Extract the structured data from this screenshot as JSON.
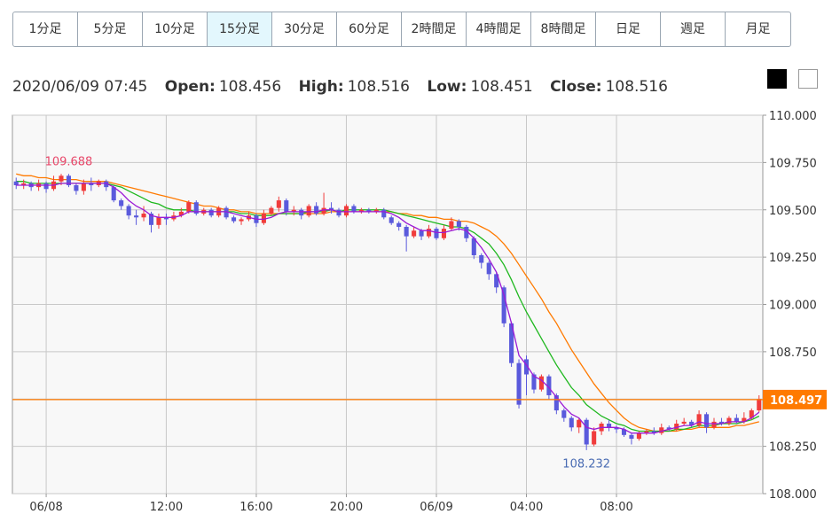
{
  "timeframes": [
    {
      "label": "1分足",
      "active": false
    },
    {
      "label": "5分足",
      "active": false
    },
    {
      "label": "10分足",
      "active": false
    },
    {
      "label": "15分足",
      "active": true
    },
    {
      "label": "30分足",
      "active": false
    },
    {
      "label": "60分足",
      "active": false
    },
    {
      "label": "2時間足",
      "active": false
    },
    {
      "label": "4時間足",
      "active": false
    },
    {
      "label": "8時間足",
      "active": false
    },
    {
      "label": "日足",
      "active": false
    },
    {
      "label": "週足",
      "active": false
    },
    {
      "label": "月足",
      "active": false
    }
  ],
  "ohlc": {
    "datetime": "2020/06/09 07:45",
    "open_label": "Open:",
    "open": "108.456",
    "high_label": "High:",
    "high": "108.516",
    "low_label": "Low:",
    "low": "108.451",
    "close_label": "Close:",
    "close": "108.516"
  },
  "theme": {
    "dark": "dark-theme-button",
    "light": "light-theme-button"
  },
  "colors": {
    "up": "#f03c3c",
    "down": "#5a5adc",
    "ma_short": "#9b1ad6",
    "ma_mid": "#1fb81f",
    "ma_long": "#ff7a00",
    "price_line": "#ff7a00",
    "high_label": "#e8486a",
    "low_label": "#4a6cb3",
    "grid": "#c8c8c8",
    "plot_bg": "#f8f8f8"
  },
  "chart_data": {
    "type": "candlestick",
    "symbol_interval": "15分足",
    "ylim": [
      108.0,
      110.0
    ],
    "yticks": [
      "110.000",
      "109.750",
      "109.500",
      "109.250",
      "109.000",
      "108.750",
      "108.500",
      "108.250",
      "108.000"
    ],
    "xticks": [
      "06/08",
      "12:00",
      "16:00",
      "20:00",
      "06/09",
      "04:00",
      "08:00"
    ],
    "current_price": "108.497",
    "period_high": "109.688",
    "period_low": "108.232",
    "grid": true,
    "candles": [
      [
        109.65,
        109.63,
        109.67,
        109.61
      ],
      [
        109.63,
        109.64,
        109.66,
        109.61
      ],
      [
        109.64,
        109.62,
        109.65,
        109.6
      ],
      [
        109.62,
        109.64,
        109.66,
        109.6
      ],
      [
        109.64,
        109.61,
        109.65,
        109.59
      ],
      [
        109.61,
        109.65,
        109.68,
        109.6
      ],
      [
        109.65,
        109.68,
        109.69,
        109.63
      ],
      [
        109.68,
        109.63,
        109.69,
        109.62
      ],
      [
        109.63,
        109.6,
        109.64,
        109.58
      ],
      [
        109.6,
        109.64,
        109.66,
        109.58
      ],
      [
        109.64,
        109.63,
        109.67,
        109.6
      ],
      [
        109.63,
        109.65,
        109.66,
        109.62
      ],
      [
        109.65,
        109.62,
        109.66,
        109.6
      ],
      [
        109.62,
        109.55,
        109.63,
        109.54
      ],
      [
        109.55,
        109.52,
        109.56,
        109.5
      ],
      [
        109.52,
        109.47,
        109.53,
        109.45
      ],
      [
        109.47,
        109.46,
        109.5,
        109.42
      ],
      [
        109.46,
        109.48,
        109.52,
        109.44
      ],
      [
        109.48,
        109.42,
        109.49,
        109.38
      ],
      [
        109.42,
        109.46,
        109.48,
        109.4
      ],
      [
        109.46,
        109.45,
        109.48,
        109.42
      ],
      [
        109.45,
        109.47,
        109.49,
        109.44
      ],
      [
        109.47,
        109.49,
        109.51,
        109.46
      ],
      [
        109.49,
        109.54,
        109.55,
        109.48
      ],
      [
        109.54,
        109.48,
        109.55,
        109.47
      ],
      [
        109.48,
        109.5,
        109.51,
        109.47
      ],
      [
        109.5,
        109.47,
        109.51,
        109.46
      ],
      [
        109.47,
        109.51,
        109.52,
        109.46
      ],
      [
        109.51,
        109.46,
        109.52,
        109.45
      ],
      [
        109.46,
        109.44,
        109.47,
        109.43
      ],
      [
        109.44,
        109.45,
        109.46,
        109.42
      ],
      [
        109.45,
        109.47,
        109.49,
        109.44
      ],
      [
        109.47,
        109.43,
        109.48,
        109.41
      ],
      [
        109.43,
        109.48,
        109.5,
        109.42
      ],
      [
        109.48,
        109.51,
        109.52,
        109.47
      ],
      [
        109.51,
        109.55,
        109.57,
        109.49
      ],
      [
        109.55,
        109.49,
        109.56,
        109.47
      ],
      [
        109.49,
        109.5,
        109.52,
        109.47
      ],
      [
        109.5,
        109.47,
        109.51,
        109.45
      ],
      [
        109.47,
        109.52,
        109.53,
        109.46
      ],
      [
        109.52,
        109.48,
        109.54,
        109.47
      ],
      [
        109.48,
        109.51,
        109.59,
        109.47
      ],
      [
        109.51,
        109.5,
        109.54,
        109.48
      ],
      [
        109.5,
        109.47,
        109.51,
        109.46
      ],
      [
        109.47,
        109.52,
        109.53,
        109.46
      ],
      [
        109.52,
        109.49,
        109.53,
        109.48
      ],
      [
        109.49,
        109.5,
        109.51,
        109.48
      ],
      [
        109.5,
        109.49,
        109.51,
        109.48
      ],
      [
        109.49,
        109.5,
        109.51,
        109.48
      ],
      [
        109.5,
        109.46,
        109.51,
        109.45
      ],
      [
        109.46,
        109.43,
        109.47,
        109.42
      ],
      [
        109.43,
        109.41,
        109.44,
        109.39
      ],
      [
        109.41,
        109.36,
        109.42,
        109.28
      ],
      [
        109.36,
        109.39,
        109.41,
        109.35
      ],
      [
        109.39,
        109.36,
        109.4,
        109.34
      ],
      [
        109.36,
        109.4,
        109.42,
        109.35
      ],
      [
        109.4,
        109.35,
        109.41,
        109.34
      ],
      [
        109.35,
        109.4,
        109.42,
        109.34
      ],
      [
        109.4,
        109.44,
        109.46,
        109.39
      ],
      [
        109.44,
        109.41,
        109.45,
        109.39
      ],
      [
        109.41,
        109.35,
        109.42,
        109.33
      ],
      [
        109.35,
        109.26,
        109.36,
        109.24
      ],
      [
        109.26,
        109.22,
        109.27,
        109.19
      ],
      [
        109.22,
        109.16,
        109.23,
        109.13
      ],
      [
        109.16,
        109.09,
        109.17,
        109.06
      ],
      [
        109.09,
        108.9,
        109.1,
        108.88
      ],
      [
        108.9,
        108.69,
        108.91,
        108.67
      ],
      [
        108.69,
        108.47,
        108.71,
        108.45
      ],
      [
        108.71,
        108.63,
        108.73,
        108.52
      ],
      [
        108.63,
        108.55,
        108.64,
        108.53
      ],
      [
        108.55,
        108.62,
        108.63,
        108.54
      ],
      [
        108.62,
        108.52,
        108.63,
        108.5
      ],
      [
        108.52,
        108.44,
        108.53,
        108.42
      ],
      [
        108.44,
        108.4,
        108.45,
        108.38
      ],
      [
        108.4,
        108.35,
        108.41,
        108.33
      ],
      [
        108.35,
        108.39,
        108.4,
        108.32
      ],
      [
        108.39,
        108.26,
        108.4,
        108.23
      ],
      [
        108.26,
        108.33,
        108.35,
        108.25
      ],
      [
        108.33,
        108.37,
        108.38,
        108.31
      ],
      [
        108.37,
        108.35,
        108.39,
        108.33
      ],
      [
        108.35,
        108.34,
        108.36,
        108.32
      ],
      [
        108.34,
        108.31,
        108.35,
        108.3
      ],
      [
        108.31,
        108.29,
        108.32,
        108.26
      ],
      [
        108.29,
        108.32,
        108.33,
        108.28
      ],
      [
        108.32,
        108.33,
        108.34,
        108.31
      ],
      [
        108.33,
        108.32,
        108.35,
        108.31
      ],
      [
        108.32,
        108.35,
        108.37,
        108.31
      ],
      [
        108.35,
        108.34,
        108.36,
        108.33
      ],
      [
        108.34,
        108.37,
        108.39,
        108.33
      ],
      [
        108.37,
        108.38,
        108.4,
        108.36
      ],
      [
        108.38,
        108.36,
        108.39,
        108.35
      ],
      [
        108.36,
        108.42,
        108.44,
        108.35
      ],
      [
        108.42,
        108.35,
        108.43,
        108.32
      ],
      [
        108.35,
        108.38,
        108.4,
        108.34
      ],
      [
        108.38,
        108.37,
        108.4,
        108.36
      ],
      [
        108.37,
        108.4,
        108.41,
        108.36
      ],
      [
        108.4,
        108.38,
        108.42,
        108.37
      ],
      [
        108.38,
        108.4,
        108.43,
        108.37
      ],
      [
        108.4,
        108.44,
        108.45,
        108.39
      ],
      [
        108.44,
        108.5,
        108.52,
        108.43
      ]
    ],
    "ma_short": [
      109.63,
      109.63,
      109.63,
      109.63,
      109.63,
      109.63,
      109.64,
      109.64,
      109.64,
      109.64,
      109.64,
      109.64,
      109.64,
      109.62,
      109.59,
      109.55,
      109.52,
      109.5,
      109.47,
      109.46,
      109.46,
      109.46,
      109.47,
      109.49,
      109.49,
      109.49,
      109.49,
      109.49,
      109.49,
      109.48,
      109.47,
      109.46,
      109.45,
      109.45,
      109.46,
      109.48,
      109.49,
      109.49,
      109.49,
      109.49,
      109.49,
      109.5,
      109.5,
      109.49,
      109.49,
      109.49,
      109.49,
      109.49,
      109.49,
      109.49,
      109.48,
      109.46,
      109.43,
      109.41,
      109.39,
      109.39,
      109.38,
      109.38,
      109.39,
      109.4,
      109.39,
      109.35,
      109.3,
      109.24,
      109.17,
      109.05,
      108.9,
      108.73,
      108.68,
      108.62,
      108.6,
      108.56,
      108.51,
      108.46,
      108.42,
      108.4,
      108.35,
      108.34,
      108.35,
      108.35,
      108.35,
      108.34,
      108.32,
      108.32,
      108.32,
      108.32,
      108.33,
      108.34,
      108.35,
      108.36,
      108.36,
      108.38,
      108.37,
      108.37,
      108.37,
      108.38,
      108.38,
      108.38,
      108.4,
      108.43
    ],
    "ma_mid": [
      109.65,
      109.65,
      109.64,
      109.64,
      109.64,
      109.64,
      109.64,
      109.64,
      109.64,
      109.64,
      109.64,
      109.64,
      109.64,
      109.63,
      109.62,
      109.6,
      109.58,
      109.56,
      109.54,
      109.53,
      109.51,
      109.5,
      109.5,
      109.5,
      109.49,
      109.49,
      109.49,
      109.49,
      109.49,
      109.49,
      109.48,
      109.48,
      109.47,
      109.47,
      109.47,
      109.48,
      109.48,
      109.48,
      109.48,
      109.49,
      109.49,
      109.49,
      109.5,
      109.49,
      109.5,
      109.5,
      109.5,
      109.5,
      109.5,
      109.5,
      109.49,
      109.48,
      109.47,
      109.46,
      109.45,
      109.44,
      109.43,
      109.42,
      109.41,
      109.41,
      109.4,
      109.38,
      109.35,
      109.32,
      109.27,
      109.21,
      109.13,
      109.04,
      108.96,
      108.89,
      108.82,
      108.75,
      108.68,
      108.62,
      108.56,
      108.52,
      108.47,
      108.44,
      108.41,
      108.39,
      108.37,
      108.36,
      108.34,
      108.33,
      108.33,
      108.33,
      108.33,
      108.33,
      108.34,
      108.34,
      108.35,
      108.36,
      108.36,
      108.36,
      108.37,
      108.37,
      108.37,
      108.38,
      108.39,
      108.41
    ],
    "ma_long": [
      109.69,
      109.68,
      109.68,
      109.67,
      109.67,
      109.66,
      109.66,
      109.66,
      109.66,
      109.65,
      109.65,
      109.65,
      109.65,
      109.64,
      109.63,
      109.62,
      109.61,
      109.6,
      109.59,
      109.58,
      109.57,
      109.56,
      109.55,
      109.54,
      109.53,
      109.52,
      109.52,
      109.51,
      109.5,
      109.5,
      109.49,
      109.49,
      109.48,
      109.48,
      109.48,
      109.48,
      109.48,
      109.48,
      109.48,
      109.48,
      109.48,
      109.48,
      109.49,
      109.49,
      109.49,
      109.49,
      109.49,
      109.49,
      109.49,
      109.49,
      109.49,
      109.48,
      109.48,
      109.47,
      109.47,
      109.46,
      109.46,
      109.45,
      109.45,
      109.44,
      109.44,
      109.43,
      109.41,
      109.39,
      109.36,
      109.32,
      109.27,
      109.21,
      109.15,
      109.09,
      109.03,
      108.96,
      108.9,
      108.83,
      108.76,
      108.7,
      108.64,
      108.58,
      108.53,
      108.48,
      108.44,
      108.4,
      108.37,
      108.35,
      108.34,
      108.33,
      108.33,
      108.33,
      108.33,
      108.34,
      108.34,
      108.35,
      108.35,
      108.35,
      108.35,
      108.35,
      108.36,
      108.36,
      108.37,
      108.38
    ]
  }
}
